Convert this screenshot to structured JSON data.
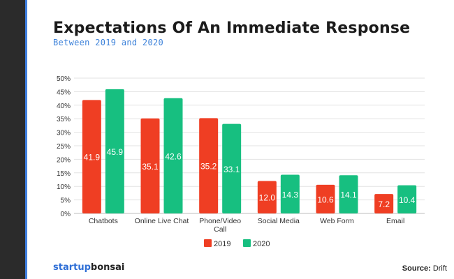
{
  "header": {
    "title": "Expectations Of An Immediate Response",
    "subtitle": "Between 2019 and 2020"
  },
  "footer": {
    "brand_part1": "startup",
    "brand_part2": "bonsai",
    "source_label": "Source:",
    "source_value": "Drift"
  },
  "colors": {
    "series_2019": "#ef3e23",
    "series_2020": "#17bf80",
    "grid": "#e3e3e3",
    "axis_text": "#333333"
  },
  "chart_data": {
    "type": "bar",
    "title": "Expectations Of An Immediate Response",
    "subtitle": "Between 2019 and 2020",
    "xlabel": "",
    "ylabel": "",
    "ylim": [
      0,
      50
    ],
    "yticks": [
      "0%",
      "5%",
      "10%",
      "15%",
      "20%",
      "25%",
      "30%",
      "35%",
      "40%",
      "45%",
      "50%"
    ],
    "categories": [
      "Chatbots",
      "Online Live Chat",
      "Phone/Video Call",
      "Social Media",
      "Web Form",
      "Email"
    ],
    "category_lines": [
      [
        "Chatbots"
      ],
      [
        "Online Live Chat"
      ],
      [
        "Phone/Video",
        "Call"
      ],
      [
        "Social Media"
      ],
      [
        "Web Form"
      ],
      [
        "Email"
      ]
    ],
    "series": [
      {
        "name": "2019",
        "values": [
          41.9,
          35.1,
          35.2,
          12.0,
          10.6,
          7.2
        ],
        "labels": [
          "41.9",
          "35.1",
          "35.2",
          "12.0",
          "10.6",
          "7.2"
        ]
      },
      {
        "name": "2020",
        "values": [
          45.9,
          42.6,
          33.1,
          14.3,
          14.1,
          10.4
        ],
        "labels": [
          "45.9",
          "42.6",
          "33.1",
          "14.3",
          "14.1",
          "10.4"
        ]
      }
    ],
    "legend": "bottom-center",
    "grid": true
  }
}
